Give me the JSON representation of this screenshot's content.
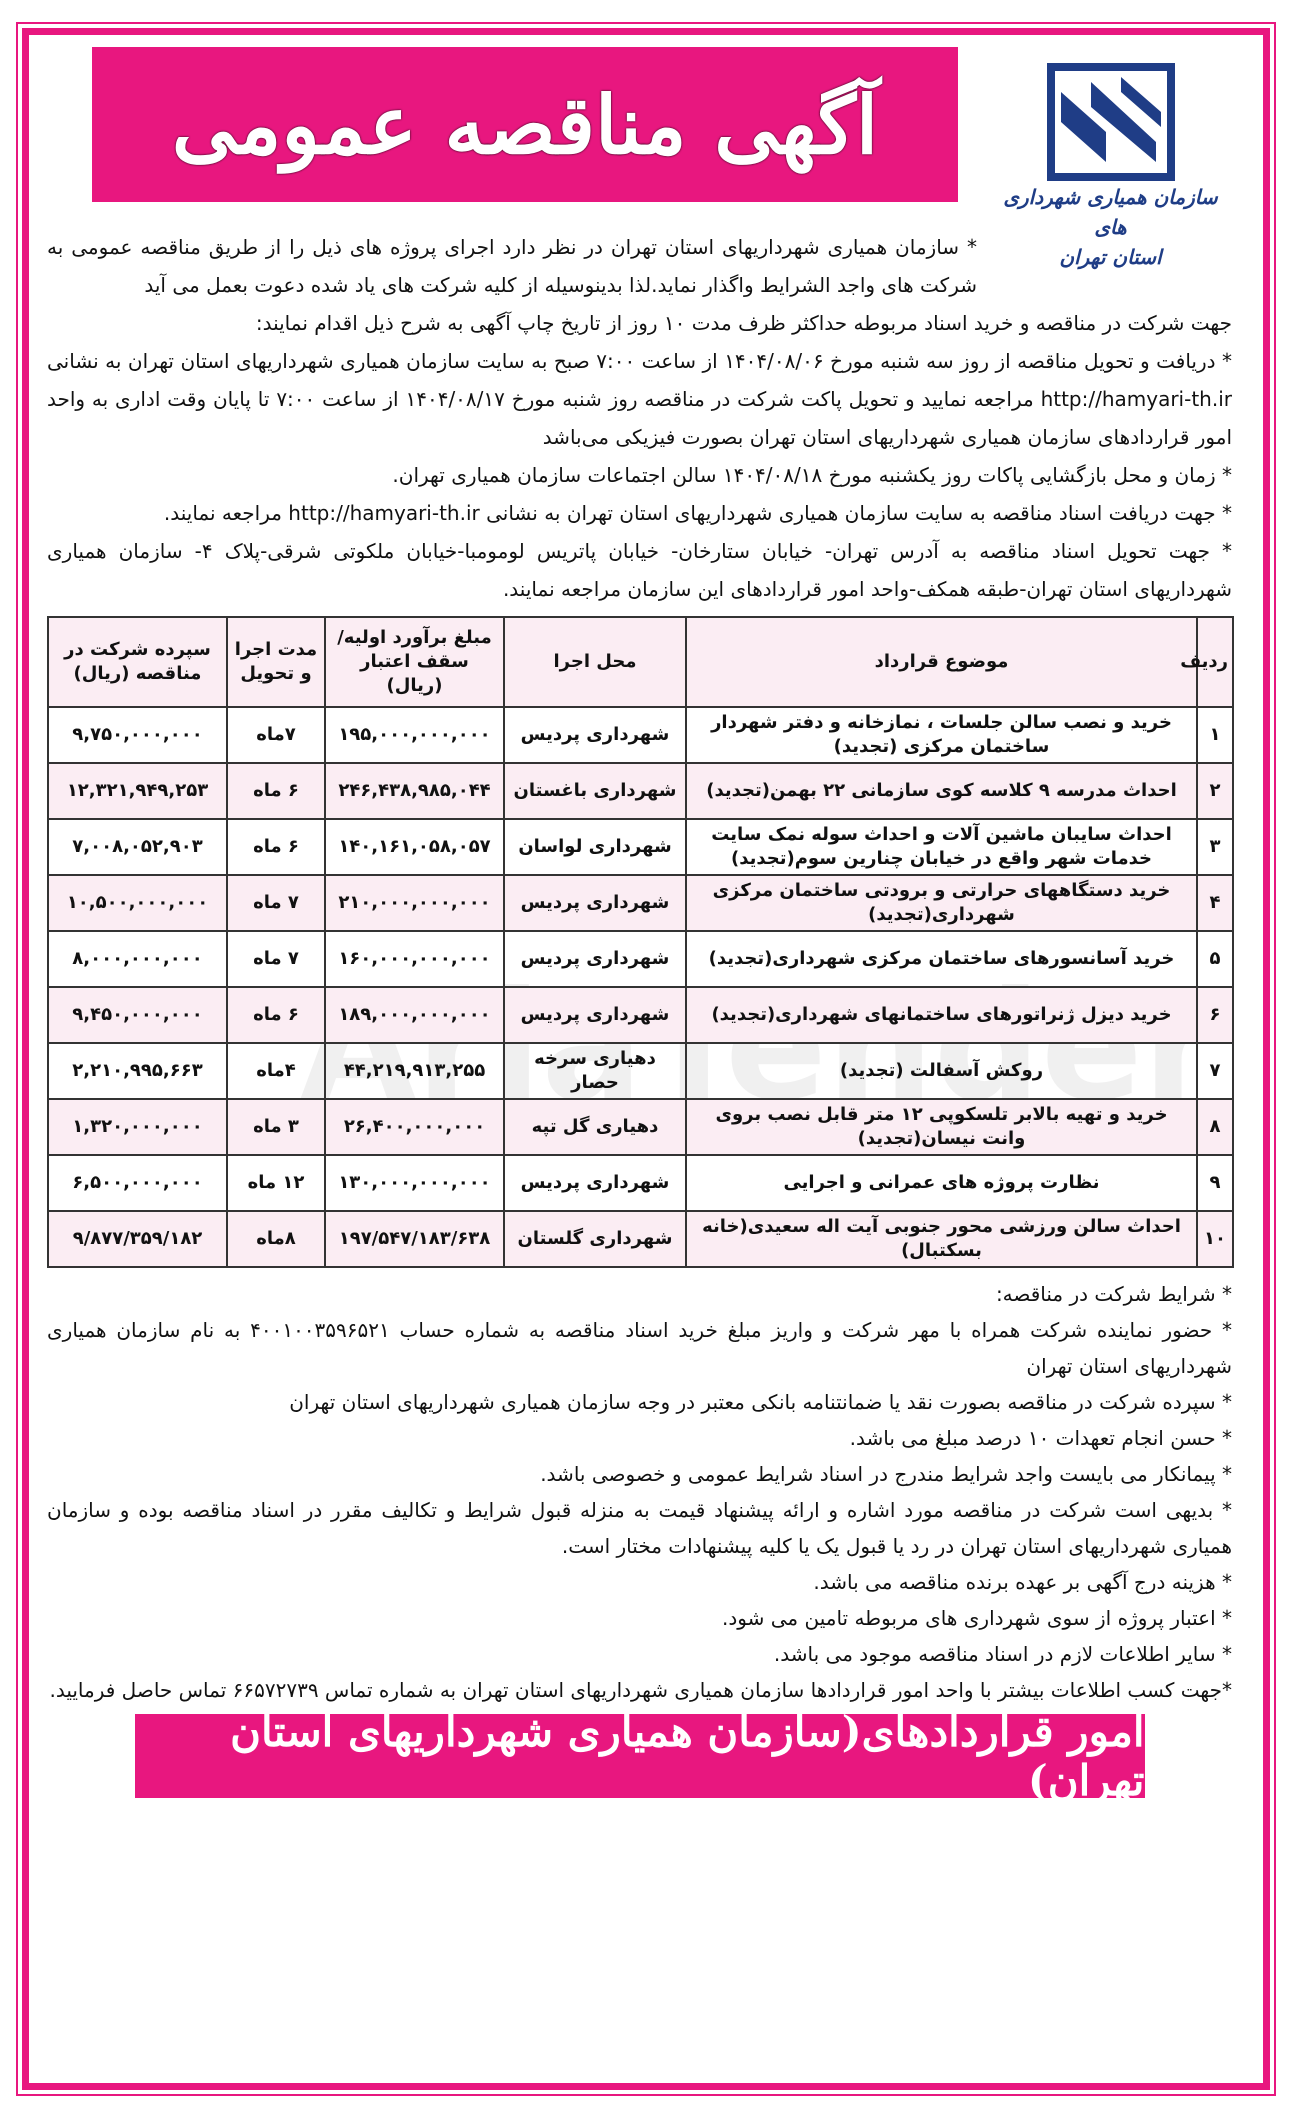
{
  "title": "آگهی مناقصه عمومی",
  "logo": {
    "line1": "سازمان همیاری شهرداری های",
    "line2": "استان تهران",
    "color": "#1f3d86"
  },
  "accent_color": "#e8177f",
  "watermark": "AriaTender",
  "intro": [
    "* سازمان همیاری شهرداریهای استان تهران در نظر دارد اجرای پروژه های ذیل را از طریق مناقصه عمومی به شرکت های واجد الشرایط واگذار نماید.لذا بدینوسیله از کلیه شرکت های یاد شده دعوت بعمل می آید",
    "جهت شرکت در مناقصه و خرید اسناد مربوطه حداکثر ظرف مدت ۱۰ روز  از تاریخ چاپ آگهی به شرح ذیل اقدام نمایند:",
    "* دریافت و تحویل مناقصه از روز سه شنبه مورخ ۱۴۰۴/۰۸/۰۶ از ساعت ۷:۰۰ صبح به سایت سازمان همیاری شهرداریهای استان تهران به نشانی http://hamyari-th.ir مراجعه نمایید و تحویل پاکت شرکت در مناقصه روز شنبه مورخ ۱۴۰۴/۰۸/۱۷ از ساعت ۷:۰۰ تا پایان وقت اداری به واحد امور قراردادهای سازمان همیاری شهرداریهای استان تهران بصورت فیزیکی می‌باشد",
    "* زمان و محل بازگشایی پاکات روز یکشنبه مورخ ۱۴۰۴/۰۸/۱۸ سالن اجتماعات سازمان همیاری تهران.",
    "* جهت دریافت اسناد مناقصه به سایت سازمان همیاری شهرداریهای استان تهران به نشانی http://hamyari-th.ir مراجعه نمایند.",
    "* جهت تحویل اسناد مناقصه به آدرس تهران- خیابان ستارخان- خیابان پاتریس لومومبا-خیابان ملکوتی شرقی-پلاک ۴- سازمان همیاری شهرداریهای استان تهران-طبقه همکف-واحد امور قراردادهای این سازمان مراجعه نمایند."
  ],
  "table": {
    "headers": [
      "ردیف",
      "موضوع قرارداد",
      "محل اجرا",
      "مبلغ برآورد اولیه/ سقف اعتبار (ریال)",
      "مدت اجرا و تحویل",
      "سپرده شرکت در مناقصه (ریال)"
    ],
    "rows": [
      [
        "۱",
        "خرید و نصب سالن جلسات ، نمازخانه و دفتر شهردار ساختمان مرکزی (تجدید)",
        "شهرداری پردیس",
        "۱۹۵,۰۰۰,۰۰۰,۰۰۰",
        "۷ماه",
        "۹,۷۵۰,۰۰۰,۰۰۰"
      ],
      [
        "۲",
        "احداث مدرسه ۹ کلاسه کوی سازمانی ۲۲ بهمن(تجدید)",
        "شهرداری باغستان",
        "۲۴۶,۴۳۸,۹۸۵,۰۴۴",
        "۶ ماه",
        "۱۲,۳۲۱,۹۴۹,۲۵۳"
      ],
      [
        "۳",
        "احداث سایبان ماشین آلات و احداث سوله نمک سایت خدمات شهر واقع در خیابان چنارین سوم(تجدید)",
        "شهرداری لواسان",
        "۱۴۰,۱۶۱,۰۵۸,۰۵۷",
        "۶ ماه",
        "۷,۰۰۸,۰۵۲,۹۰۳"
      ],
      [
        "۴",
        "خرید دستگاههای حرارتی و برودتی ساختمان مرکزی شهرداری(تجدید)",
        "شهرداری پردیس",
        "۲۱۰,۰۰۰,۰۰۰,۰۰۰",
        "۷ ماه",
        "۱۰,۵۰۰,۰۰۰,۰۰۰"
      ],
      [
        "۵",
        "خرید آسانسورهای ساختمان مرکزی شهرداری(تجدید)",
        "شهرداری پردیس",
        "۱۶۰,۰۰۰,۰۰۰,۰۰۰",
        "۷ ماه",
        "۸,۰۰۰,۰۰۰,۰۰۰"
      ],
      [
        "۶",
        "خرید دیزل ژنراتورهای ساختمانهای شهرداری(تجدید)",
        "شهرداری پردیس",
        "۱۸۹,۰۰۰,۰۰۰,۰۰۰",
        "۶ ماه",
        "۹,۴۵۰,۰۰۰,۰۰۰"
      ],
      [
        "۷",
        "روکش آسفالت (تجدید)",
        "دهیاری سرخه حصار",
        "۴۴,۲۱۹,۹۱۳,۲۵۵",
        "۴ماه",
        "۲,۲۱۰,۹۹۵,۶۶۳"
      ],
      [
        "۸",
        "خرید و تهیه بالابر تلسکوپی ۱۲ متر قابل نصب بروی وانت نیسان(تجدید)",
        "دهیاری گل تپه",
        "۲۶,۴۰۰,۰۰۰,۰۰۰",
        "۳ ماه",
        "۱,۳۲۰,۰۰۰,۰۰۰"
      ],
      [
        "۹",
        "نظارت پروژه های عمرانی و اجرایی",
        "شهرداری پردیس",
        "۱۳۰,۰۰۰,۰۰۰,۰۰۰",
        "۱۲ ماه",
        "۶,۵۰۰,۰۰۰,۰۰۰"
      ],
      [
        "۱۰",
        "احداث سالن ورزشی محور جنوبی آیت اله سعیدی(خانه بسکتبال)",
        "شهرداری گلستان",
        "۱۹۷/۵۴۷/۱۸۳/۶۳۸",
        "۸ماه",
        "۹/۸۷۷/۳۵۹/۱۸۲"
      ]
    ]
  },
  "conditions": [
    "* شرایط شرکت در مناقصه:",
    "* حضور نماینده شرکت همراه با مهر شرکت و واریز مبلغ خرید اسناد مناقصه به شماره حساب ۴۰۰۱۰۰۳۵۹۶۵۲۱ به نام سازمان همیاری شهرداریهای استان تهران",
    "* سپرده شرکت در مناقصه بصورت نقد یا ضمانتنامه بانکی معتبر در وجه سازمان همیاری شهرداریهای استان تهران",
    "* حسن انجام تعهدات ۱۰ درصد مبلغ می باشد.",
    "* پیمانکار می بایست واجد شرایط مندرج در اسناد شرایط عمومی و خصوصی باشد.",
    "* بدیهی است شرکت در مناقصه مورد اشاره و ارائه پیشنهاد قیمت به منزله قبول شرایط و تکالیف مقرر در اسناد مناقصه بوده و سازمان همیاری شهرداریهای استان تهران در رد یا قبول یک یا کلیه پیشنهادات مختار است.",
    "* هزینه درج آگهی بر عهده برنده مناقصه می باشد.",
    "* اعتبار پروژه از سوی شهرداری های مربوطه تامین می شود.",
    "* سایر اطلاعات لازم در اسناد مناقصه موجود می باشد.",
    "*جهت کسب اطلاعات بیشتر با واحد امور قراردادها سازمان همیاری شهرداریهای استان تهران به شماره تماس ۶۶۵۷۲۷۳۹ تماس حاصل فرمایید."
  ],
  "footer": "امور قراردادهای(سازمان همیاری شهرداریهای استان تهران)"
}
